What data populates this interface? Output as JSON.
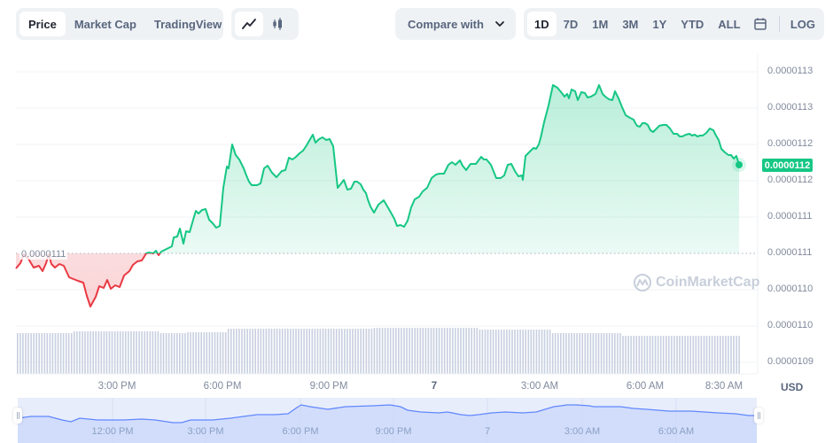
{
  "toolbar": {
    "chart_type_tabs": [
      {
        "label": "Price",
        "active": true
      },
      {
        "label": "Market Cap",
        "active": false
      },
      {
        "label": "TradingView",
        "active": false
      }
    ],
    "view_icons": [
      {
        "name": "line-chart-icon",
        "active": true
      },
      {
        "name": "candlestick-icon",
        "active": false
      }
    ],
    "compare_label": "Compare with",
    "ranges": [
      {
        "label": "1D",
        "active": true
      },
      {
        "label": "7D",
        "active": false
      },
      {
        "label": "1M",
        "active": false
      },
      {
        "label": "3M",
        "active": false
      },
      {
        "label": "1Y",
        "active": false
      },
      {
        "label": "YTD",
        "active": false
      },
      {
        "label": "ALL",
        "active": false
      }
    ],
    "calendar_icon": "calendar-icon",
    "log_label": "LOG"
  },
  "colors": {
    "up": "#16c784",
    "down": "#ea3943",
    "navigator_line": "#6188ff",
    "volume_bar": "#c8cfe0"
  },
  "chart_data": {
    "type": "line",
    "title": "",
    "xlabel": "",
    "ylabel": "USD",
    "currency": "USD",
    "y_tick_labels": [
      "0.0000113",
      "0.0000113",
      "0.0000112",
      "0.0000112",
      "0.0000111",
      "0.0000111",
      "0.0000110",
      "0.0000110",
      "0.0000109"
    ],
    "x_tick_labels": [
      "3:00 PM",
      "6:00 PM",
      "9:00 PM",
      "7",
      "3:00 AM",
      "6:00 AM",
      "8:30 AM"
    ],
    "reference_line_label": "0.0000111",
    "current_price_label": "0.0000112",
    "grid": true,
    "series": [
      {
        "name": "Price",
        "x": [
          "12:00 PM",
          "1:00 PM",
          "2:00 PM",
          "3:00 PM",
          "4:00 PM",
          "5:00 PM",
          "6:00 PM",
          "7:00 PM",
          "8:00 PM",
          "9:00 PM",
          "10:00 PM",
          "11:00 PM",
          "12:00 AM",
          "1:00 AM",
          "2:00 AM",
          "3:00 AM",
          "4:00 AM",
          "5:00 AM",
          "6:00 AM",
          "7:00 AM",
          "8:00 AM",
          "8:30 AM"
        ],
        "values": [
          1.109e-05,
          1.109e-05,
          1.106e-05,
          1.108e-05,
          1.111e-05,
          1.114e-05,
          1.122e-05,
          1.12e-05,
          1.121e-05,
          1.123e-05,
          1.119e-05,
          1.115e-05,
          1.116e-05,
          1.118e-05,
          1.12e-05,
          1.119e-05,
          1.128e-05,
          1.128e-05,
          1.125e-05,
          1.124e-05,
          1.124e-05,
          1.121e-05
        ]
      }
    ],
    "navigator": {
      "x_tick_labels": [
        "12:00 PM",
        "3:00 PM",
        "6:00 PM",
        "9:00 PM",
        "7",
        "3:00 AM",
        "6:00 AM"
      ]
    },
    "watermark": "CoinMarketCap"
  }
}
